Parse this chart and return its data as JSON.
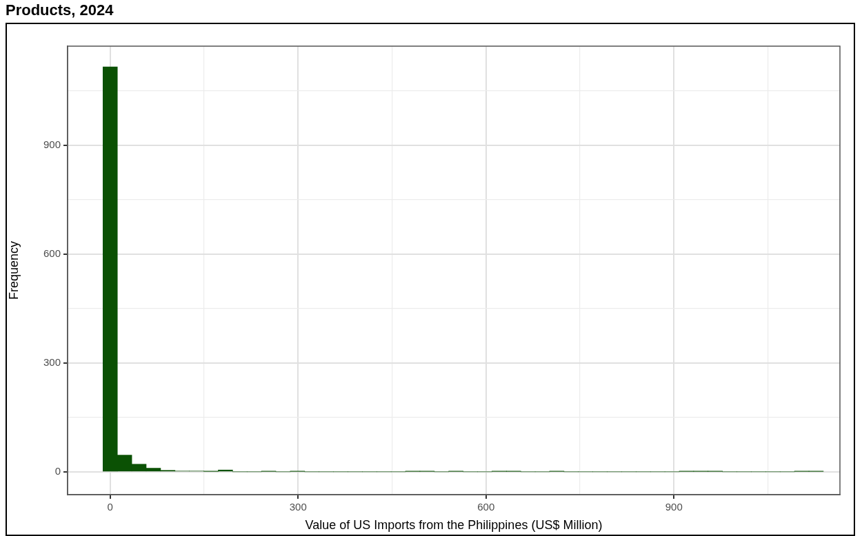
{
  "chart_data": {
    "type": "histogram",
    "title": "Products, 2024",
    "xlabel": "Value of US Imports from the Philippines (US$ Million)",
    "ylabel": "Frequency",
    "bins": [
      -11.5,
      11.5,
      34.5,
      57.5,
      80.5,
      103.5,
      126.5,
      149.5,
      172.5,
      195.5,
      218.5,
      241.5,
      264.5,
      287.5,
      310.5,
      333.5,
      356.5,
      379.5,
      402.5,
      425.5,
      448.5,
      471.5,
      494.5,
      517.5,
      540.5,
      563.5,
      586.5,
      609.5,
      632.5,
      655.5,
      678.5,
      701.5,
      724.5,
      747.5,
      770.5,
      793.5,
      816.5,
      839.5,
      862.5,
      885.5,
      908.5,
      931.5,
      954.5,
      977.5,
      1000.5,
      1023.5,
      1046.5,
      1069.5,
      1092.5,
      1115.5,
      1138.5
    ],
    "values": [
      1116,
      46,
      21,
      10,
      4,
      2,
      2,
      1,
      5,
      0,
      0,
      1,
      0,
      1,
      0,
      0,
      0,
      0,
      0,
      0,
      0,
      1,
      1,
      0,
      1,
      0,
      0,
      1,
      1,
      0,
      0,
      1,
      0,
      0,
      0,
      0,
      0,
      0,
      0,
      0,
      1,
      1,
      1,
      0,
      0,
      0,
      0,
      0,
      1,
      1
    ],
    "color": "#0b5104",
    "xlim": [
      -68,
      1165
    ],
    "ylim": [
      -63,
      1173
    ],
    "xticks": [
      0,
      {
        "value": 150,
        "label": null
      },
      300,
      {
        "value": 450,
        "label": null
      },
      600,
      {
        "value": 750,
        "label": null
      },
      900,
      {
        "value": 1050,
        "label": null
      }
    ],
    "yticks": [
      0,
      {
        "value": 150,
        "label": null
      },
      300,
      {
        "value": 450,
        "label": null
      },
      600,
      {
        "value": 750,
        "label": null
      },
      900,
      {
        "value": 1050,
        "label": null
      }
    ],
    "grid": true
  }
}
